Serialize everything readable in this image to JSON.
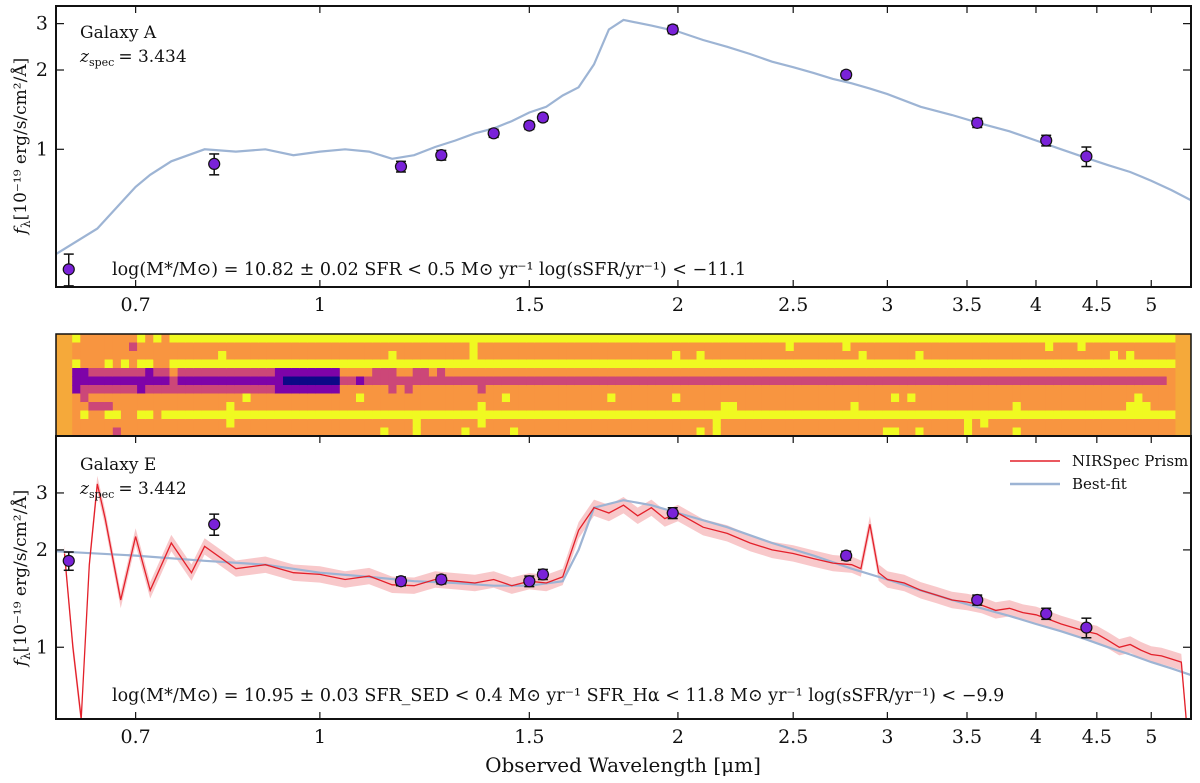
{
  "figure": {
    "xlabel": "Observed Wavelength [μm]",
    "xticks": [
      0.7,
      1,
      1.5,
      2,
      2.5,
      3,
      3.5,
      4,
      4.5,
      5
    ],
    "xtick_labels": [
      "0.7",
      "1",
      "1.5",
      "2",
      "2.5",
      "3",
      "3.5",
      "4",
      "4.5",
      "5"
    ],
    "xlim": [
      0.6,
      5.4
    ],
    "colors": {
      "model": "#9db4d4",
      "prism": "#e3202a",
      "prism_err": "#f6b6b8",
      "photometry": "#7a22d8",
      "axes": "#111111"
    }
  },
  "chart_data": [
    {
      "type": "line",
      "panel": "top",
      "galaxy": "Galaxy A",
      "z_label": "z",
      "z_sub": "spec",
      "z_value": "= 3.434",
      "ylabel_main": "f",
      "ylabel_sub": "λ",
      "ylabel_unit": "[10⁻¹⁹ erg/s/cm²/Å]",
      "yscale": "log",
      "ylim": [
        0.3,
        3.5
      ],
      "ytick_labels": [
        {
          "value": 1,
          "label": "1"
        },
        {
          "value": 2,
          "label": "2"
        },
        {
          "value": 3,
          "label": "3"
        }
      ],
      "annotation": "log(M*/M⊙) = 10.82 ± 0.02    SFR < 0.5 M⊙ yr⁻¹    log(sSFR/yr⁻¹) < −11.1",
      "model_series": {
        "name": "Best-fit",
        "x": [
          0.6,
          0.65,
          0.7,
          0.72,
          0.75,
          0.8,
          0.85,
          0.9,
          0.95,
          1.0,
          1.05,
          1.1,
          1.15,
          1.2,
          1.25,
          1.3,
          1.35,
          1.4,
          1.45,
          1.5,
          1.55,
          1.6,
          1.65,
          1.7,
          1.75,
          1.8,
          1.9,
          2.0,
          2.1,
          2.2,
          2.3,
          2.4,
          2.5,
          2.6,
          2.7,
          2.8,
          2.9,
          3.0,
          3.2,
          3.4,
          3.6,
          3.8,
          4.0,
          4.2,
          4.4,
          4.6,
          4.8,
          5.0,
          5.2,
          5.4
        ],
        "y": [
          0.4,
          0.5,
          0.72,
          0.8,
          0.9,
          1.0,
          0.98,
          1.0,
          0.95,
          0.98,
          1.0,
          0.98,
          0.92,
          0.95,
          1.02,
          1.08,
          1.15,
          1.2,
          1.28,
          1.38,
          1.45,
          1.6,
          1.72,
          2.1,
          2.85,
          3.1,
          2.95,
          2.8,
          2.6,
          2.45,
          2.3,
          2.15,
          2.05,
          1.95,
          1.85,
          1.78,
          1.7,
          1.62,
          1.45,
          1.35,
          1.25,
          1.17,
          1.08,
          1.0,
          0.93,
          0.87,
          0.82,
          0.76,
          0.7,
          0.64
        ]
      },
      "photometry": {
        "x": [
          0.615,
          0.815,
          1.17,
          1.265,
          1.4,
          1.5,
          1.54,
          1.98,
          2.77,
          3.57,
          4.08,
          4.41
        ],
        "y": [
          0.35,
          0.88,
          0.86,
          0.95,
          1.15,
          1.23,
          1.32,
          2.85,
          1.92,
          1.26,
          1.08,
          0.94
        ],
        "yerr": [
          0.05,
          0.08,
          0.04,
          0.04,
          0.04,
          0.04,
          0.04,
          0.1,
          0.06,
          0.05,
          0.05,
          0.08
        ]
      }
    },
    {
      "type": "heatmap",
      "panel": "spectrum-2d",
      "rows": 12,
      "cols": 140,
      "trace_row": 5,
      "colormap": [
        "#0d0887",
        "#7e03a8",
        "#cc4778",
        "#f89540",
        "#f0f921"
      ]
    },
    {
      "type": "line",
      "panel": "bottom",
      "galaxy": "Galaxy E",
      "z_label": "z",
      "z_sub": "spec",
      "z_value": "= 3.442",
      "ylabel_main": "f",
      "ylabel_sub": "λ",
      "ylabel_unit": "[10⁻¹⁹ erg/s/cm²/Å]",
      "yscale": "log",
      "ylim": [
        0.6,
        4.5
      ],
      "ytick_labels": [
        {
          "value": 1,
          "label": "1"
        },
        {
          "value": 2,
          "label": "2"
        },
        {
          "value": 3,
          "label": "3"
        }
      ],
      "legend": [
        {
          "label": "NIRSpec Prism",
          "series": "prism"
        },
        {
          "label": "Best-fit",
          "series": "model"
        }
      ],
      "annotation": "log(M*/M⊙) = 10.95 ± 0.03    SFR_SED < 0.4 M⊙ yr⁻¹    SFR_Hα < 11.8 M⊙ yr⁻¹    log(sSFR/yr⁻¹) < −9.9",
      "model_series": {
        "name": "Best-fit",
        "x": [
          0.6,
          0.7,
          0.8,
          0.9,
          1.0,
          1.1,
          1.2,
          1.3,
          1.4,
          1.5,
          1.6,
          1.65,
          1.7,
          1.8,
          1.9,
          2.0,
          2.2,
          2.4,
          2.6,
          2.8,
          3.0,
          3.2,
          3.4,
          3.6,
          3.8,
          4.0,
          4.2,
          4.4,
          4.6,
          4.8,
          5.0,
          5.2,
          5.4
        ],
        "y": [
          1.98,
          1.92,
          1.85,
          1.8,
          1.7,
          1.65,
          1.6,
          1.58,
          1.55,
          1.55,
          1.6,
          2.0,
          2.7,
          2.85,
          2.75,
          2.6,
          2.35,
          2.1,
          1.92,
          1.75,
          1.62,
          1.5,
          1.4,
          1.32,
          1.25,
          1.18,
          1.12,
          1.06,
          1.0,
          0.95,
          0.9,
          0.86,
          0.82
        ]
      },
      "prism_series": {
        "name": "NIRSpec Prism",
        "x": [
          0.61,
          0.62,
          0.63,
          0.64,
          0.65,
          0.66,
          0.68,
          0.7,
          0.72,
          0.75,
          0.78,
          0.8,
          0.85,
          0.9,
          0.95,
          1.0,
          1.05,
          1.1,
          1.15,
          1.2,
          1.25,
          1.3,
          1.35,
          1.4,
          1.45,
          1.5,
          1.55,
          1.6,
          1.65,
          1.7,
          1.75,
          1.8,
          1.85,
          1.9,
          1.95,
          2.0,
          2.1,
          2.2,
          2.3,
          2.4,
          2.5,
          2.6,
          2.7,
          2.8,
          2.85,
          2.9,
          2.95,
          3.0,
          3.1,
          3.2,
          3.3,
          3.4,
          3.5,
          3.6,
          3.7,
          3.8,
          3.9,
          4.0,
          4.1,
          4.2,
          4.3,
          4.4,
          4.5,
          4.6,
          4.7,
          4.8,
          4.9,
          5.0,
          5.1,
          5.2,
          5.3,
          5.35
        ],
        "y": [
          1.95,
          1.0,
          0.6,
          1.8,
          3.2,
          2.5,
          1.4,
          2.2,
          1.5,
          2.1,
          1.7,
          2.05,
          1.75,
          1.8,
          1.7,
          1.68,
          1.62,
          1.66,
          1.56,
          1.55,
          1.62,
          1.6,
          1.58,
          1.62,
          1.55,
          1.6,
          1.58,
          1.65,
          2.3,
          2.7,
          2.6,
          2.75,
          2.55,
          2.7,
          2.5,
          2.6,
          2.35,
          2.25,
          2.1,
          2.0,
          1.95,
          1.88,
          1.82,
          1.8,
          1.75,
          2.4,
          1.7,
          1.62,
          1.58,
          1.5,
          1.45,
          1.4,
          1.38,
          1.35,
          1.3,
          1.32,
          1.28,
          1.26,
          1.22,
          1.18,
          1.15,
          1.12,
          1.1,
          1.05,
          1.0,
          1.02,
          0.98,
          0.95,
          0.94,
          0.92,
          0.9,
          0.6
        ]
      },
      "photometry": {
        "x": [
          0.615,
          0.815,
          1.17,
          1.265,
          1.5,
          1.54,
          1.98,
          2.77,
          3.57,
          4.08,
          4.41
        ],
        "y": [
          1.85,
          2.4,
          1.6,
          1.62,
          1.6,
          1.68,
          2.6,
          1.92,
          1.4,
          1.27,
          1.15
        ],
        "yerr": [
          0.12,
          0.18,
          0.05,
          0.05,
          0.06,
          0.06,
          0.1,
          0.06,
          0.05,
          0.05,
          0.08
        ]
      }
    }
  ]
}
